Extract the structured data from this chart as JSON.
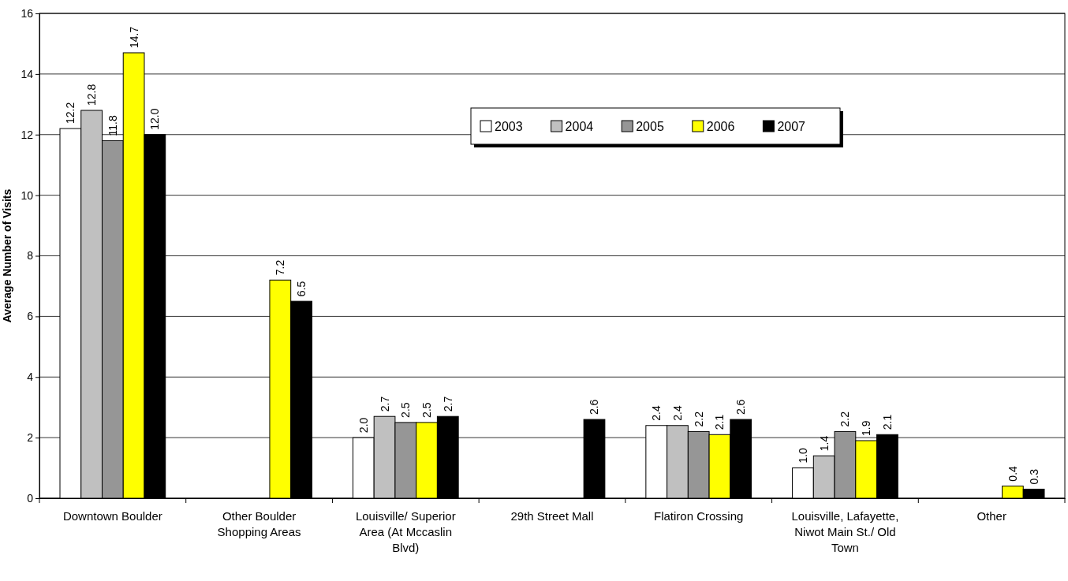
{
  "chart_data": {
    "type": "bar",
    "ylabel": "Average Number of Visits",
    "categories": [
      "Downtown Boulder",
      "Other Boulder Shopping Areas",
      "Louisville/ Superior Area (At Mccaslin Blvd)",
      "29th Street Mall",
      "Flatiron Crossing",
      "Louisville, Lafayette, Niwot Main St./ Old Town",
      "Other"
    ],
    "series": [
      {
        "name": "2003",
        "color": "#ffffff",
        "values": [
          12.2,
          null,
          2.0,
          null,
          2.4,
          1.0,
          null
        ],
        "value_labels": [
          "12.2",
          null,
          "2.0",
          null,
          "2.4",
          "1.0",
          null
        ]
      },
      {
        "name": "2004",
        "color": "#c0c0c0",
        "values": [
          12.8,
          null,
          2.7,
          null,
          2.4,
          1.4,
          null
        ],
        "value_labels": [
          "12.8",
          null,
          "2.7",
          null,
          "2.4",
          "1.4",
          null
        ]
      },
      {
        "name": "2005",
        "color": "#969696",
        "values": [
          11.8,
          null,
          2.5,
          null,
          2.2,
          2.2,
          null
        ],
        "value_labels": [
          "11.8",
          null,
          "2.5",
          null,
          "2.2",
          "2.2",
          null
        ]
      },
      {
        "name": "2006",
        "color": "#ffff00",
        "values": [
          14.7,
          7.2,
          2.5,
          null,
          2.1,
          1.9,
          0.4
        ],
        "value_labels": [
          "14.7",
          "7.2",
          "2.5",
          null,
          "2.1",
          "1.9",
          "0.4"
        ]
      },
      {
        "name": "2007",
        "color": "#000000",
        "values": [
          12.0,
          6.5,
          2.7,
          2.6,
          2.6,
          2.1,
          0.3
        ],
        "value_labels": [
          "12.0",
          "6.5",
          "2.7",
          "2.6",
          "2.6",
          "2.1",
          "0.3"
        ]
      }
    ],
    "ylim": [
      0,
      16
    ],
    "yticks": [
      0,
      2,
      4,
      6,
      8,
      10,
      12,
      14,
      16
    ],
    "grid": "y",
    "legend": "top right"
  }
}
